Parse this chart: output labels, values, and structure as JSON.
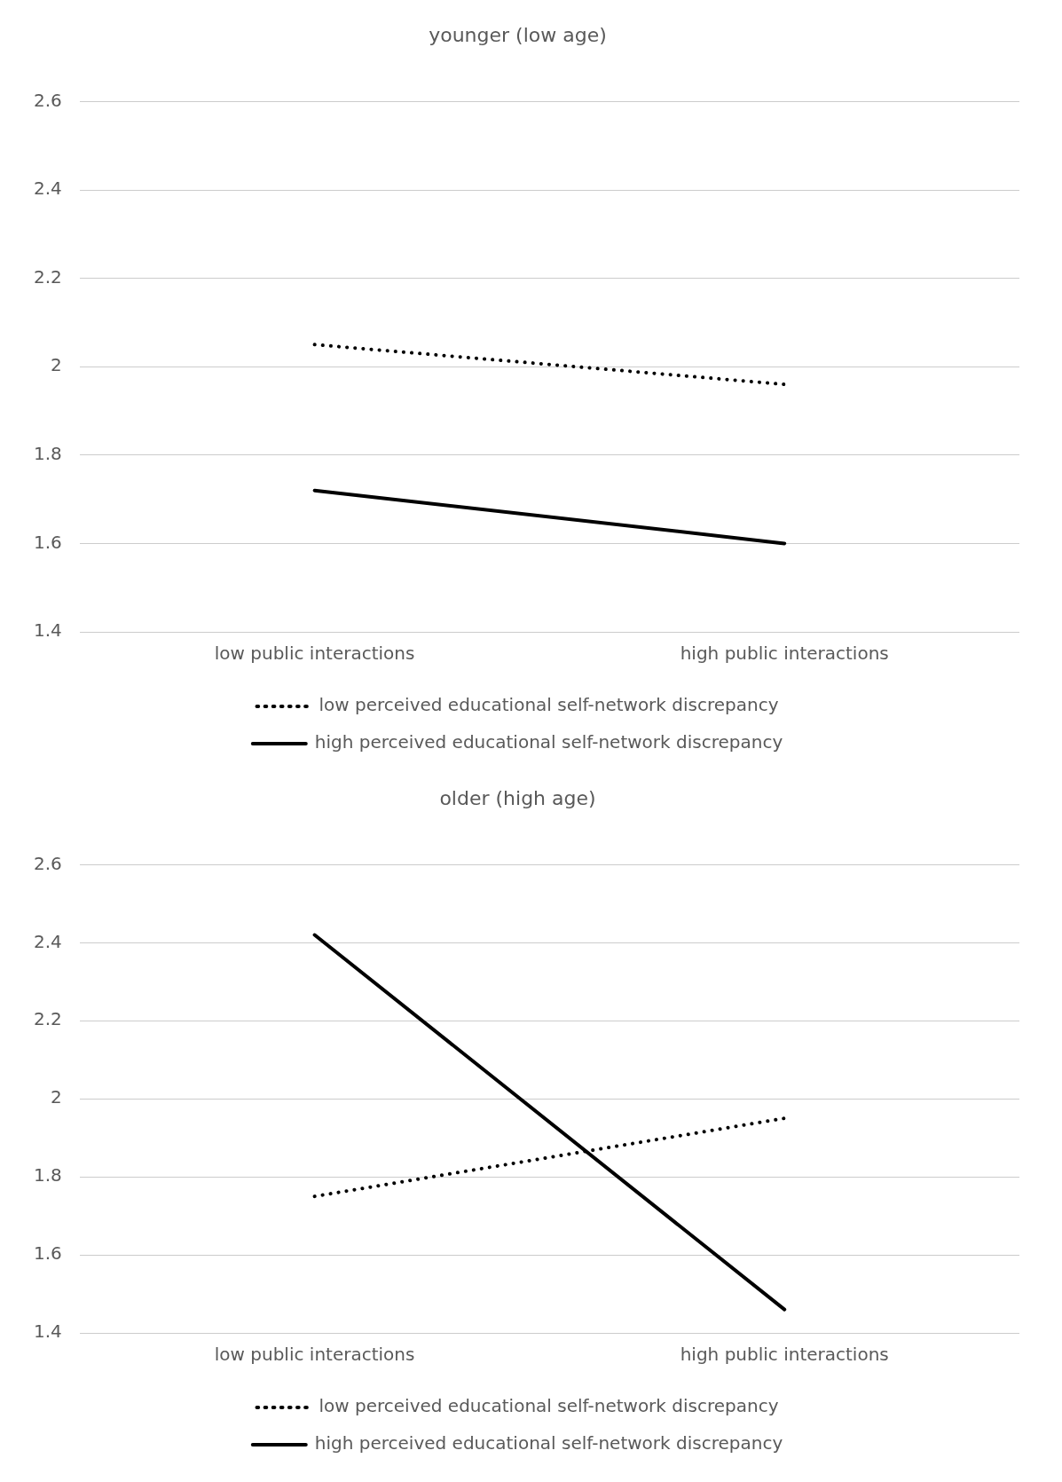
{
  "chart_data": [
    {
      "type": "line",
      "title": "younger (low age)",
      "categories": [
        "low public interactions",
        "high public interactions"
      ],
      "series": [
        {
          "name": "low perceived educational self-network discrepancy",
          "color": "#000000",
          "line_style": "dotted",
          "values": [
            2.05,
            1.96
          ]
        },
        {
          "name": "high perceived educational self-network discrepancy",
          "color": "#000000",
          "line_style": "solid",
          "values": [
            1.72,
            1.6
          ]
        }
      ],
      "ylim": [
        1.4,
        2.6
      ],
      "yticks": [
        1.4,
        1.6,
        1.8,
        2,
        2.2,
        2.4,
        2.6
      ],
      "grid": "y",
      "legend": "bottom",
      "marker": "none"
    },
    {
      "type": "line",
      "title": "older (high age)",
      "categories": [
        "low public interactions",
        "high public interactions"
      ],
      "series": [
        {
          "name": "low perceived educational self-network discrepancy",
          "color": "#000000",
          "line_style": "dotted",
          "values": [
            1.75,
            1.95
          ]
        },
        {
          "name": "high perceived educational self-network discrepancy",
          "color": "#000000",
          "line_style": "solid",
          "values": [
            2.42,
            1.46
          ]
        }
      ],
      "ylim": [
        1.4,
        2.6
      ],
      "yticks": [
        1.4,
        1.6,
        1.8,
        2,
        2.2,
        2.4,
        2.6
      ],
      "grid": "y",
      "legend": "bottom",
      "marker": "none"
    }
  ]
}
